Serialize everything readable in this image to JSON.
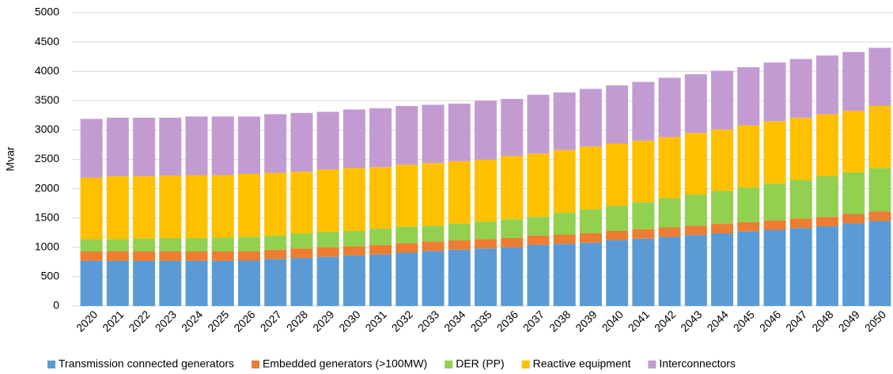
{
  "chart_data": {
    "type": "stacked_bar",
    "y_label": "Mvar",
    "categories": [
      "2020",
      "2021",
      "2022",
      "2023",
      "2024",
      "2025",
      "2026",
      "2027",
      "2028",
      "2029",
      "2030",
      "2031",
      "2032",
      "2033",
      "2034",
      "2035",
      "2036",
      "2037",
      "2038",
      "2039",
      "2040",
      "2041",
      "2042",
      "2043",
      "2044",
      "2045",
      "2046",
      "2047",
      "2048",
      "2049",
      "2050"
    ],
    "series": [
      {
        "name": "Transmission connected generators",
        "color": "#5b9bd5",
        "values": [
          770,
          770,
          770,
          770,
          770,
          770,
          775,
          800,
          820,
          840,
          860,
          880,
          910,
          940,
          960,
          980,
          1000,
          1040,
          1060,
          1080,
          1120,
          1150,
          1180,
          1210,
          1240,
          1270,
          1300,
          1330,
          1360,
          1410,
          1450
        ]
      },
      {
        "name": "Embedded generators (>100MW)",
        "color": "#ed7d31",
        "values": [
          160,
          160,
          160,
          160,
          160,
          160,
          160,
          160,
          160,
          160,
          160,
          160,
          160,
          160,
          160,
          160,
          160,
          160,
          160,
          160,
          160,
          160,
          160,
          160,
          160,
          160,
          160,
          160,
          160,
          160,
          160
        ]
      },
      {
        "name": "DER (PP)",
        "color": "#92d050",
        "values": [
          210,
          210,
          220,
          230,
          230,
          240,
          245,
          240,
          260,
          260,
          260,
          280,
          280,
          270,
          280,
          300,
          320,
          320,
          370,
          410,
          430,
          460,
          500,
          530,
          560,
          590,
          620,
          660,
          690,
          710,
          740
        ]
      },
      {
        "name": "Reactive equipment",
        "color": "#ffc000",
        "values": [
          1050,
          1070,
          1060,
          1060,
          1070,
          1060,
          1070,
          1070,
          1050,
          1070,
          1070,
          1050,
          1060,
          1070,
          1070,
          1050,
          1080,
          1080,
          1070,
          1070,
          1060,
          1050,
          1040,
          1050,
          1050,
          1060,
          1070,
          1060,
          1060,
          1050,
          1060
        ]
      },
      {
        "name": "Interconnectors",
        "color": "#c39bd3",
        "values": [
          1000,
          1000,
          1000,
          990,
          1000,
          1000,
          980,
          1000,
          1000,
          980,
          1000,
          1000,
          1000,
          990,
          980,
          1010,
          970,
          1000,
          980,
          980,
          990,
          1000,
          1010,
          1000,
          1000,
          990,
          1000,
          1000,
          1000,
          1000,
          990
        ]
      }
    ],
    "ylim": [
      0,
      5000
    ],
    "yticks": [
      0,
      500,
      1000,
      1500,
      2000,
      2500,
      3000,
      3500,
      4000,
      4500,
      5000
    ],
    "grid": true,
    "legend": "bottom"
  }
}
